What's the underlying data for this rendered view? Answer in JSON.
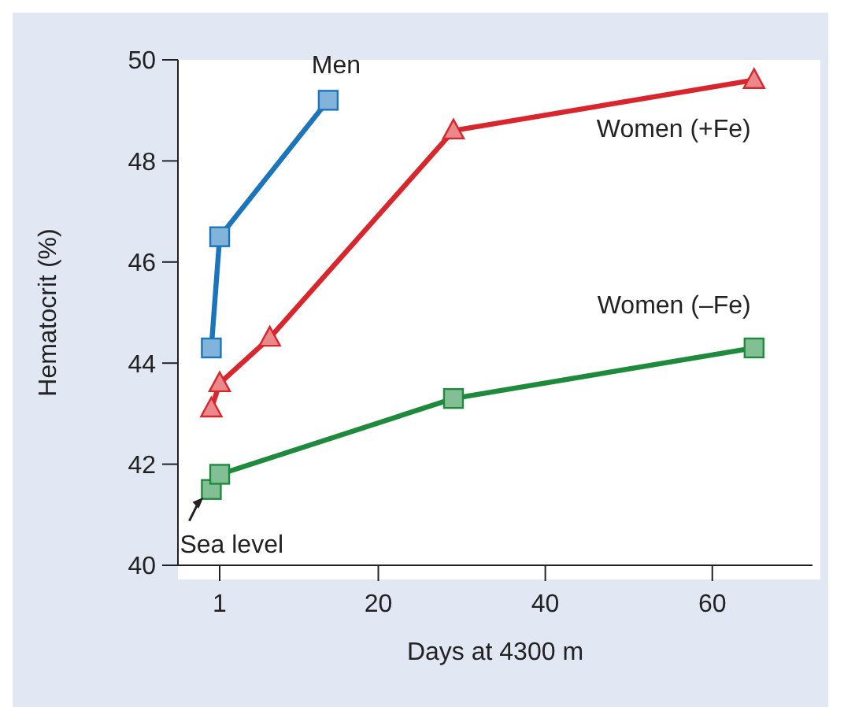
{
  "chart_data": {
    "type": "line",
    "xlabel": "Days at 4300 m",
    "ylabel": "Hematocrit (%)",
    "xlim": [
      -4,
      72
    ],
    "xticks": [
      1,
      20,
      40,
      60
    ],
    "ylim": [
      40,
      50
    ],
    "yticks": [
      40,
      42,
      44,
      46,
      48,
      50
    ],
    "series": [
      {
        "name": "Men",
        "color": "#1b75bc",
        "marker": "square",
        "x": [
          0,
          1,
          14
        ],
        "values": [
          44.3,
          46.5,
          49.2
        ]
      },
      {
        "name": "Women (+Fe)",
        "color": "#d9262c",
        "marker": "triangle",
        "x": [
          0,
          1,
          7,
          29,
          65
        ],
        "values": [
          43.1,
          43.6,
          44.5,
          48.6,
          49.6
        ]
      },
      {
        "name": "Women (–Fe)",
        "color": "#1e8a3c",
        "marker": "square",
        "x": [
          0,
          1,
          29,
          65
        ],
        "values": [
          41.5,
          41.8,
          43.3,
          44.3
        ]
      }
    ],
    "annotations": [
      {
        "text": "Sea level",
        "x": 0,
        "y": 41.5
      }
    ]
  }
}
